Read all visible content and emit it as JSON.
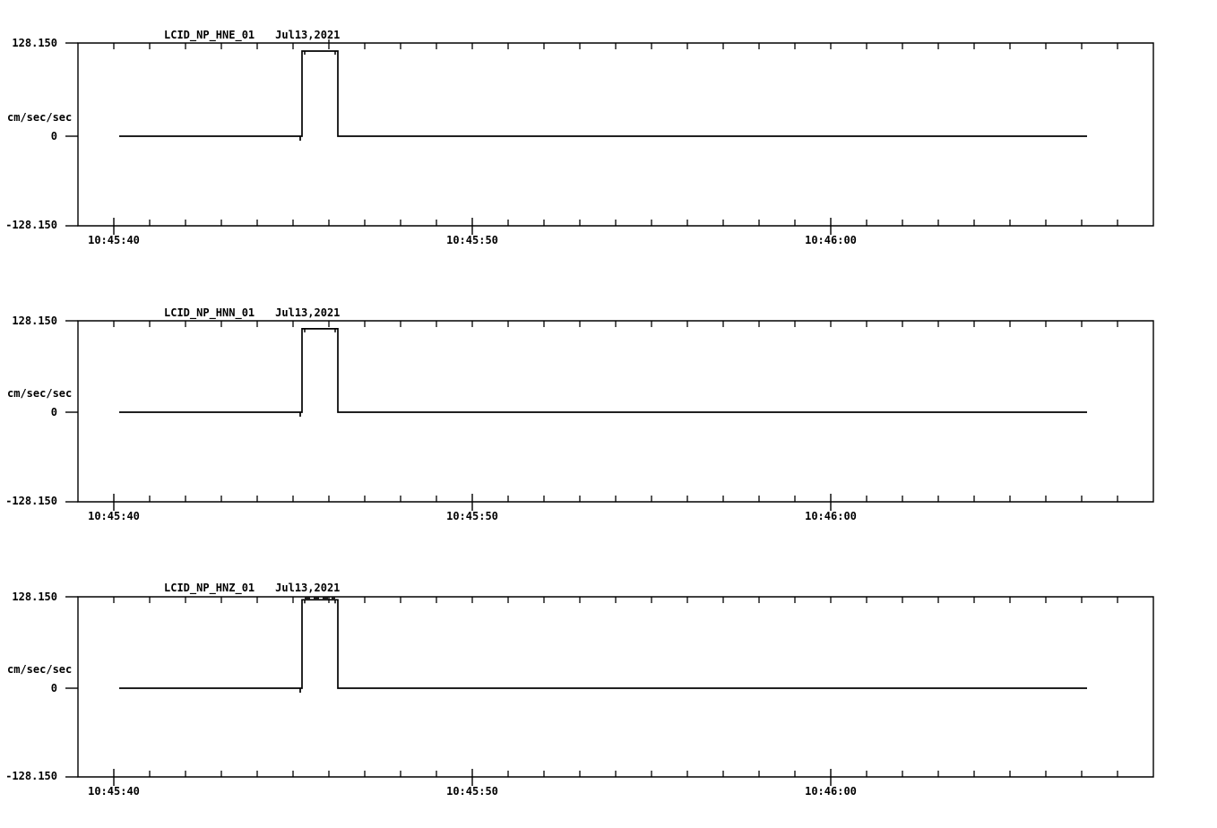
{
  "page": {
    "background_color": "#ffffff",
    "line_color": "#000000",
    "description": "Three-channel seismic accelerometer waveform display"
  },
  "chart_data": [
    {
      "type": "line",
      "id": "LCID_NP_HNE_01",
      "title_left": "LCID_NP_HNE_01",
      "title_right": "Jul13,2021",
      "ylabel": "cm/sec/sec",
      "ytick_labels": [
        "128.150",
        "0",
        "-128.150"
      ],
      "yticks": [
        128.15,
        0,
        -128.15
      ],
      "ylim": [
        -128.15,
        128.15
      ],
      "xtick_labels": [
        "10:45:40",
        "10:45:50",
        "10:46:00"
      ],
      "x_minor_tick_seconds": 1,
      "x_major_tick_seconds": 10,
      "x_range": [
        "10:45:39.0",
        "10:46:09.0"
      ],
      "grid": false,
      "trace": {
        "baseline_value": 0,
        "start": "10:45:40.15",
        "end": "10:46:07.15",
        "pulse": {
          "onset": "10:45:45.25",
          "offset": "10:45:46.25",
          "amplitude": 117,
          "clipped": false
        }
      }
    },
    {
      "type": "line",
      "id": "LCID_NP_HNN_01",
      "title_left": "LCID_NP_HNN_01",
      "title_right": "Jul13,2021",
      "ylabel": "cm/sec/sec",
      "ytick_labels": [
        "128.150",
        "0",
        "-128.150"
      ],
      "yticks": [
        128.15,
        0,
        -128.15
      ],
      "ylim": [
        -128.15,
        128.15
      ],
      "xtick_labels": [
        "10:45:40",
        "10:45:50",
        "10:46:00"
      ],
      "x_minor_tick_seconds": 1,
      "x_major_tick_seconds": 10,
      "x_range": [
        "10:45:39.0",
        "10:46:09.0"
      ],
      "grid": false,
      "trace": {
        "baseline_value": 0,
        "start": "10:45:40.15",
        "end": "10:46:07.15",
        "pulse": {
          "onset": "10:45:45.25",
          "offset": "10:45:46.25",
          "amplitude": 117,
          "clipped": false
        }
      }
    },
    {
      "type": "line",
      "id": "LCID_NP_HNZ_01",
      "title_left": "LCID_NP_HNZ_01",
      "title_right": "Jul13,2021",
      "ylabel": "cm/sec/sec",
      "ytick_labels": [
        "128.150",
        "0",
        "-128.150"
      ],
      "yticks": [
        128.15,
        0,
        -128.15
      ],
      "ylim": [
        -128.15,
        128.15
      ],
      "xtick_labels": [
        "10:45:40",
        "10:45:50",
        "10:46:00"
      ],
      "x_minor_tick_seconds": 1,
      "x_major_tick_seconds": 10,
      "x_range": [
        "10:45:39.0",
        "10:46:09.0"
      ],
      "grid": false,
      "trace": {
        "baseline_value": 0,
        "start": "10:45:40.15",
        "end": "10:46:07.15",
        "pulse": {
          "onset": "10:45:45.25",
          "offset": "10:45:46.25",
          "amplitude": 124,
          "clipped": true
        }
      }
    }
  ]
}
